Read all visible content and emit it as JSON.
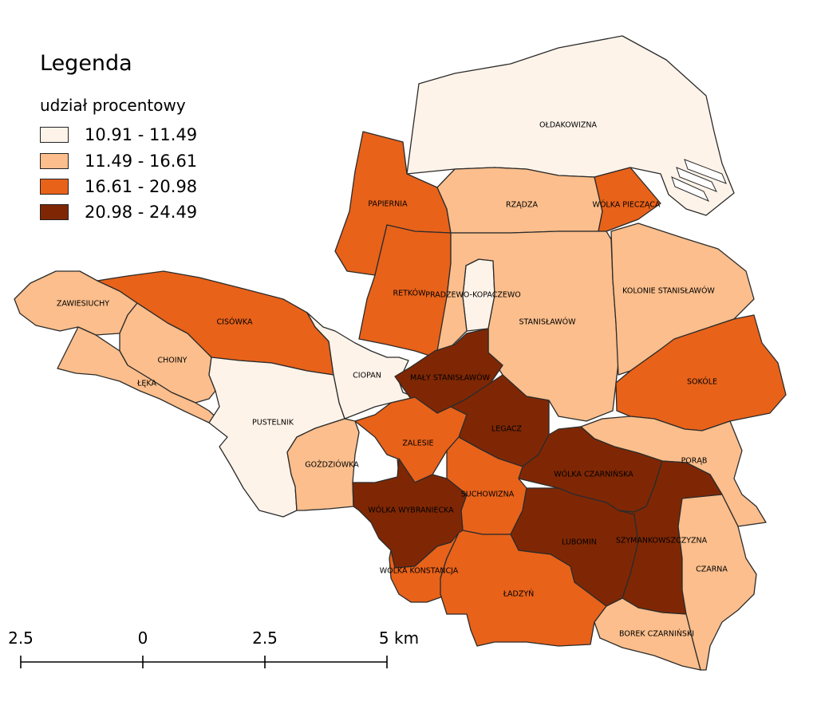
{
  "legend": {
    "title": "Legenda",
    "subtitle": "udział procentowy",
    "classes": [
      {
        "label": "10.91 - 11.49",
        "color": "#fef3e9"
      },
      {
        "label": "11.49 - 16.61",
        "color": "#fbbe8c"
      },
      {
        "label": "16.61 - 20.98",
        "color": "#e8621a"
      },
      {
        "label": "20.98 - 24.49",
        "color": "#7f2704"
      }
    ]
  },
  "regions": [
    {
      "id": "oldakowizna",
      "name": "OŁDAKOWIZNA",
      "class": 0
    },
    {
      "id": "papiernia",
      "name": "PAPIERNIA",
      "class": 2
    },
    {
      "id": "rzadza",
      "name": "RZĄDZA",
      "class": 1
    },
    {
      "id": "wolka-pieczaca",
      "name": "WÓLKA PIECZĄCA",
      "class": 2
    },
    {
      "id": "retkow",
      "name": "RETKÓW",
      "class": 2
    },
    {
      "id": "pradzewo-kopaczewo",
      "name": "PRADZEWO-KOPACZEWO",
      "class": 0
    },
    {
      "id": "stanislawow",
      "name": "STANISŁAWÓW",
      "class": 1
    },
    {
      "id": "kolonie-stanislawow",
      "name": "KOLONIE STANISŁAWÓW",
      "class": 1
    },
    {
      "id": "zawiesiuchy",
      "name": "ZAWIESIUCHY",
      "class": 1
    },
    {
      "id": "cisowka",
      "name": "CISÓWKA",
      "class": 2
    },
    {
      "id": "choiny",
      "name": "CHOINY",
      "class": 1
    },
    {
      "id": "leka",
      "name": "ŁĘKA",
      "class": 1
    },
    {
      "id": "ciopan",
      "name": "CIOPAN",
      "class": 0
    },
    {
      "id": "maly-stanislawow",
      "name": "MAŁY STANISŁAWÓW",
      "class": 3
    },
    {
      "id": "sokole",
      "name": "SOKÓLE",
      "class": 2
    },
    {
      "id": "pustelnik",
      "name": "PUSTELNIK",
      "class": 0
    },
    {
      "id": "legacz",
      "name": "LEGACZ",
      "class": 3
    },
    {
      "id": "zalesie",
      "name": "ZALESIE",
      "class": 2
    },
    {
      "id": "gozdziowka",
      "name": "GOŹDZIÓWKA",
      "class": 1
    },
    {
      "id": "porab",
      "name": "PORĄB",
      "class": 1
    },
    {
      "id": "wolka-czarninska",
      "name": "WÓLKA CZARNIŃSKA",
      "class": 3
    },
    {
      "id": "suchowizna",
      "name": "SUCHOWIZNA",
      "class": 2
    },
    {
      "id": "wolka-wybraniecka",
      "name": "WÓLKA WYBRANIECKA",
      "class": 3
    },
    {
      "id": "lubomin",
      "name": "LUBOMIN",
      "class": 3
    },
    {
      "id": "szymankowszczyzna",
      "name": "SZYMANKOWSZCZYZNA",
      "class": 3
    },
    {
      "id": "czarna",
      "name": "CZARNA",
      "class": 1
    },
    {
      "id": "wolka-konstancja",
      "name": "WÓLKA KONSTANCJA",
      "class": 2
    },
    {
      "id": "ladzyn",
      "name": "ŁADZYŃ",
      "class": 2
    },
    {
      "id": "borek-czarninski",
      "name": "BOREK CZARNIŃSKI",
      "class": 1
    }
  ],
  "scalebar": {
    "labels": [
      "2.5",
      "0",
      "2.5",
      "5 km"
    ]
  }
}
